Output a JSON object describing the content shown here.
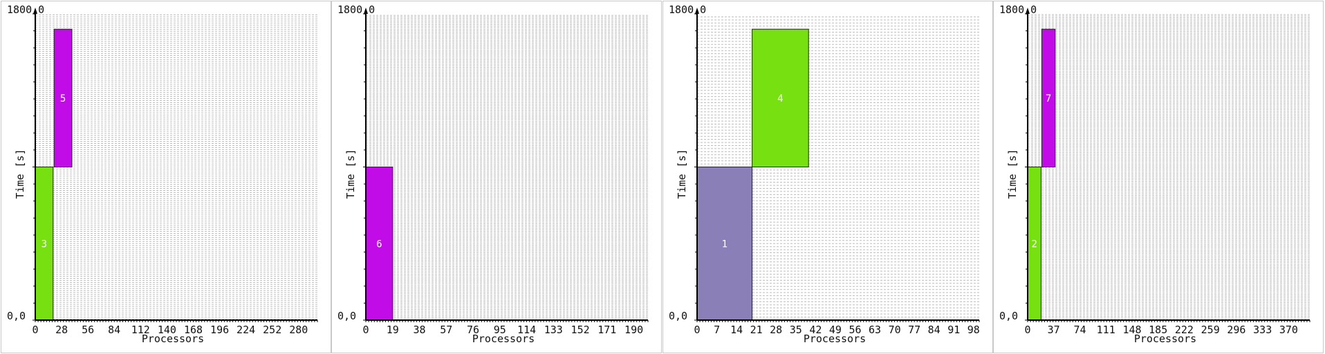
{
  "chart_data": [
    {
      "type": "bar",
      "xlabel": "Processors",
      "ylabel": "Time [s]",
      "ylim": [
        0,
        1800
      ],
      "y_tick_labels": [
        "0,0",
        "1800,0"
      ],
      "xlim": [
        0,
        300
      ],
      "x_ticks": [
        0,
        28,
        56,
        84,
        112,
        140,
        168,
        196,
        224,
        252,
        280
      ],
      "processor_rows": 300,
      "jobs": [
        {
          "label": "3",
          "proc_start": 0,
          "proc_end": 19,
          "t_start": 0,
          "t_end": 900,
          "color": "#77e011"
        },
        {
          "label": "5",
          "proc_start": 20,
          "proc_end": 39,
          "t_start": 900,
          "t_end": 1710,
          "color": "#c20ce8"
        }
      ]
    },
    {
      "type": "bar",
      "xlabel": "Processors",
      "ylabel": "Time [s]",
      "ylim": [
        0,
        1800
      ],
      "y_tick_labels": [
        "0,0",
        "1800,0"
      ],
      "xlim": [
        0,
        200
      ],
      "x_ticks": [
        0,
        19,
        38,
        57,
        76,
        95,
        114,
        133,
        152,
        171,
        190
      ],
      "processor_rows": 200,
      "jobs": [
        {
          "label": "6",
          "proc_start": 0,
          "proc_end": 19,
          "t_start": 0,
          "t_end": 900,
          "color": "#c20ce8"
        }
      ]
    },
    {
      "type": "bar",
      "xlabel": "Processors",
      "ylabel": "Time [s]",
      "ylim": [
        0,
        1800
      ],
      "y_tick_labels": [
        "0,0",
        "1800,0"
      ],
      "xlim": [
        0,
        100
      ],
      "x_ticks": [
        0,
        7,
        14,
        21,
        28,
        35,
        42,
        49,
        56,
        63,
        70,
        77,
        84,
        91,
        98
      ],
      "processor_rows": 100,
      "jobs": [
        {
          "label": "1",
          "proc_start": 0,
          "proc_end": 19.5,
          "t_start": 0,
          "t_end": 900,
          "color": "#8a7fb7"
        },
        {
          "label": "4",
          "proc_start": 19.5,
          "proc_end": 39.5,
          "t_start": 900,
          "t_end": 1710,
          "color": "#77e011"
        }
      ]
    },
    {
      "type": "bar",
      "xlabel": "Processors",
      "ylabel": "Time [s]",
      "ylim": [
        0,
        1800
      ],
      "y_tick_labels": [
        "0,0",
        "1800,0"
      ],
      "xlim": [
        0,
        400
      ],
      "x_ticks": [
        0,
        37,
        74,
        111,
        148,
        185,
        222,
        259,
        296,
        333,
        370
      ],
      "processor_rows": 400,
      "jobs": [
        {
          "label": "2",
          "proc_start": 0,
          "proc_end": 19,
          "t_start": 0,
          "t_end": 900,
          "color": "#77e011"
        },
        {
          "label": "7",
          "proc_start": 20,
          "proc_end": 39,
          "t_start": 900,
          "t_end": 1710,
          "color": "#c20ce8"
        }
      ]
    }
  ]
}
